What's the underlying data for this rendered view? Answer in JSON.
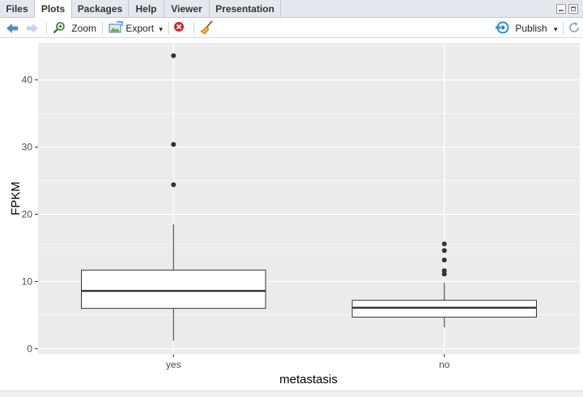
{
  "tabs": [
    {
      "label": "Files",
      "active": false
    },
    {
      "label": "Plots",
      "active": true
    },
    {
      "label": "Packages",
      "active": false
    },
    {
      "label": "Help",
      "active": false
    },
    {
      "label": "Viewer",
      "active": false
    },
    {
      "label": "Presentation",
      "active": false
    }
  ],
  "toolbar": {
    "zoom_label": "Zoom",
    "export_label": "Export",
    "export_caret": "▾",
    "publish_label": "Publish",
    "publish_caret": "▾"
  },
  "colors": {
    "panel_bg": "#ebebeb",
    "grid": "#ffffff",
    "box_fill": "#ffffff",
    "box_stroke": "#333333",
    "outlier": "#333333",
    "publish_icon": "#2b8fd6",
    "remove_icon": "#cc2a2a"
  },
  "chart_data": {
    "type": "boxplot",
    "xlabel": "metastasis",
    "ylabel": "FPKM",
    "categories": [
      "yes",
      "no"
    ],
    "ylim": [
      -0.8,
      45.5
    ],
    "yticks": [
      0,
      10,
      20,
      30,
      40
    ],
    "grid": true,
    "boxes": [
      {
        "category": "yes",
        "whisker_low": 1.2,
        "q1": 6.0,
        "median": 8.6,
        "q3": 11.7,
        "whisker_high": 18.5,
        "outliers": [
          24.4,
          30.4,
          43.6
        ]
      },
      {
        "category": "no",
        "whisker_low": 3.2,
        "q1": 4.7,
        "median": 6.1,
        "q3": 7.2,
        "whisker_high": 9.8,
        "outliers": [
          11.1,
          11.6,
          13.2,
          14.6,
          15.6
        ]
      }
    ]
  }
}
